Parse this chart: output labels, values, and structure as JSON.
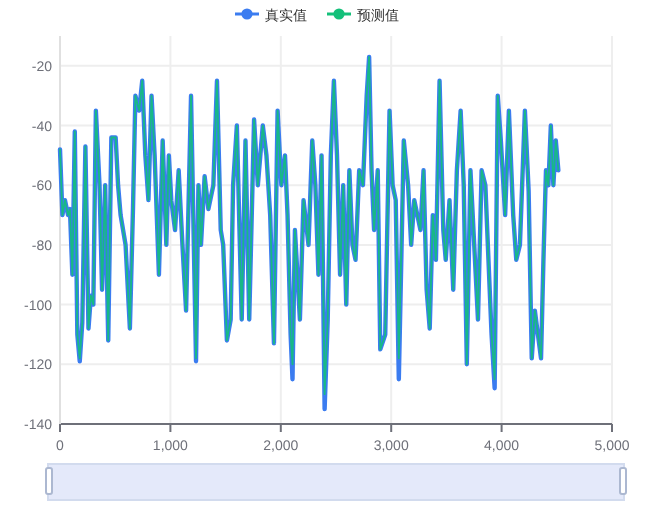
{
  "chart_data": {
    "type": "line",
    "legend": "top",
    "grid": true,
    "line_style": "solid",
    "x": [
      0,
      22,
      45,
      73,
      90,
      112,
      134,
      157,
      179,
      202,
      230,
      258,
      280,
      302,
      325,
      358,
      381,
      409,
      437,
      465,
      504,
      526,
      549,
      594,
      633,
      661,
      683,
      717,
      745,
      773,
      801,
      829,
      857,
      896,
      930,
      963,
      986,
      1008,
      1042,
      1075,
      1109,
      1142,
      1187,
      1232,
      1254,
      1277,
      1310,
      1344,
      1389,
      1422,
      1456,
      1478,
      1512,
      1546,
      1568,
      1602,
      1646,
      1680,
      1714,
      1758,
      1792,
      1837,
      1870,
      1904,
      1938,
      1971,
      2005,
      2038,
      2061,
      2089,
      2106,
      2128,
      2173,
      2206,
      2251,
      2285,
      2313,
      2341,
      2369,
      2397,
      2425,
      2453,
      2481,
      2509,
      2537,
      2565,
      2593,
      2621,
      2649,
      2677,
      2710,
      2744,
      2778,
      2800,
      2822,
      2845,
      2878,
      2901,
      2946,
      2985,
      3013,
      3041,
      3069,
      3114,
      3153,
      3181,
      3209,
      3237,
      3265,
      3293,
      3321,
      3349,
      3377,
      3405,
      3438,
      3472,
      3494,
      3528,
      3562,
      3595,
      3629,
      3657,
      3685,
      3718,
      3752,
      3786,
      3819,
      3853,
      3881,
      3909,
      3937,
      3965,
      3993,
      4032,
      4066,
      4105,
      4133,
      4166,
      4211,
      4245,
      4273,
      4301,
      4329,
      4357,
      4379,
      4402,
      4424,
      4446,
      4469,
      4491,
      4514
    ],
    "series": [
      {
        "name": "真实值",
        "color": "#3b7cf0",
        "values": [
          -48,
          -70,
          -65,
          -70,
          -68,
          -90,
          -42,
          -110,
          -119,
          -106,
          -47,
          -108,
          -97,
          -100,
          -35,
          -60,
          -95,
          -60,
          -112,
          -44,
          -44,
          -60,
          -70,
          -80,
          -108,
          -68,
          -30,
          -35,
          -25,
          -50,
          -65,
          -30,
          -50,
          -90,
          -45,
          -80,
          -50,
          -65,
          -75,
          -55,
          -80,
          -102,
          -30,
          -119,
          -60,
          -80,
          -57,
          -68,
          -60,
          -25,
          -75,
          -80,
          -112,
          -105,
          -60,
          -40,
          -105,
          -45,
          -105,
          -38,
          -60,
          -40,
          -50,
          -70,
          -113,
          -35,
          -60,
          -50,
          -70,
          -110,
          -125,
          -75,
          -105,
          -65,
          -80,
          -45,
          -60,
          -90,
          -50,
          -135,
          -105,
          -50,
          -25,
          -50,
          -90,
          -60,
          -100,
          -55,
          -80,
          -85,
          -55,
          -60,
          -30,
          -17,
          -55,
          -75,
          -55,
          -115,
          -110,
          -35,
          -60,
          -65,
          -125,
          -45,
          -60,
          -80,
          -65,
          -70,
          -75,
          -55,
          -95,
          -108,
          -70,
          -85,
          -25,
          -75,
          -85,
          -65,
          -95,
          -55,
          -35,
          -60,
          -120,
          -55,
          -80,
          -105,
          -55,
          -60,
          -85,
          -110,
          -128,
          -30,
          -45,
          -70,
          -35,
          -70,
          -85,
          -80,
          -35,
          -62,
          -118,
          -102,
          -110,
          -118,
          -85,
          -55,
          -60,
          -40,
          -60,
          -45,
          -55
        ]
      },
      {
        "name": "预测值",
        "color": "#14c07a",
        "values": [
          -48,
          -70,
          -65,
          -70,
          -68,
          -90,
          -42,
          -110,
          -118,
          -106,
          -47,
          -108,
          -97,
          -100,
          -35,
          -60,
          -95,
          -60,
          -112,
          -44,
          -44,
          -60,
          -70,
          -80,
          -108,
          -68,
          -30,
          -35,
          -25,
          -50,
          -65,
          -30,
          -50,
          -90,
          -45,
          -80,
          -50,
          -65,
          -75,
          -55,
          -80,
          -102,
          -30,
          -118,
          -60,
          -80,
          -57,
          -68,
          -60,
          -25,
          -75,
          -80,
          -112,
          -105,
          -60,
          -40,
          -105,
          -45,
          -105,
          -38,
          -60,
          -40,
          -50,
          -70,
          -113,
          -35,
          -60,
          -50,
          -70,
          -110,
          -120,
          -75,
          -105,
          -65,
          -80,
          -45,
          -60,
          -90,
          -50,
          -130,
          -105,
          -50,
          -25,
          -50,
          -90,
          -60,
          -100,
          -55,
          -80,
          -85,
          -55,
          -60,
          -30,
          -17,
          -55,
          -75,
          -55,
          -115,
          -110,
          -35,
          -60,
          -65,
          -118,
          -45,
          -60,
          -80,
          -65,
          -70,
          -75,
          -55,
          -95,
          -108,
          -70,
          -85,
          -25,
          -75,
          -85,
          -65,
          -95,
          -55,
          -35,
          -60,
          -120,
          -55,
          -80,
          -105,
          -55,
          -60,
          -85,
          -110,
          -125,
          -30,
          -45,
          -70,
          -35,
          -70,
          -85,
          -80,
          -35,
          -62,
          -118,
          -102,
          -110,
          -118,
          -85,
          -55,
          -60,
          -40,
          -60,
          -45,
          -55
        ]
      }
    ],
    "xlim": [
      0,
      5000
    ],
    "xticks": [
      0,
      {
        "value": 1000,
        "label": "1,000"
      },
      {
        "value": 2000,
        "label": "2,000"
      },
      {
        "value": 3000,
        "label": "3,000"
      },
      {
        "value": 4000,
        "label": "4,000"
      },
      {
        "value": 5000,
        "label": "5,000"
      }
    ],
    "ylim": [
      -140,
      -10
    ],
    "yticks": [
      -140,
      -120,
      -100,
      -80,
      -60,
      -40,
      -20
    ]
  }
}
